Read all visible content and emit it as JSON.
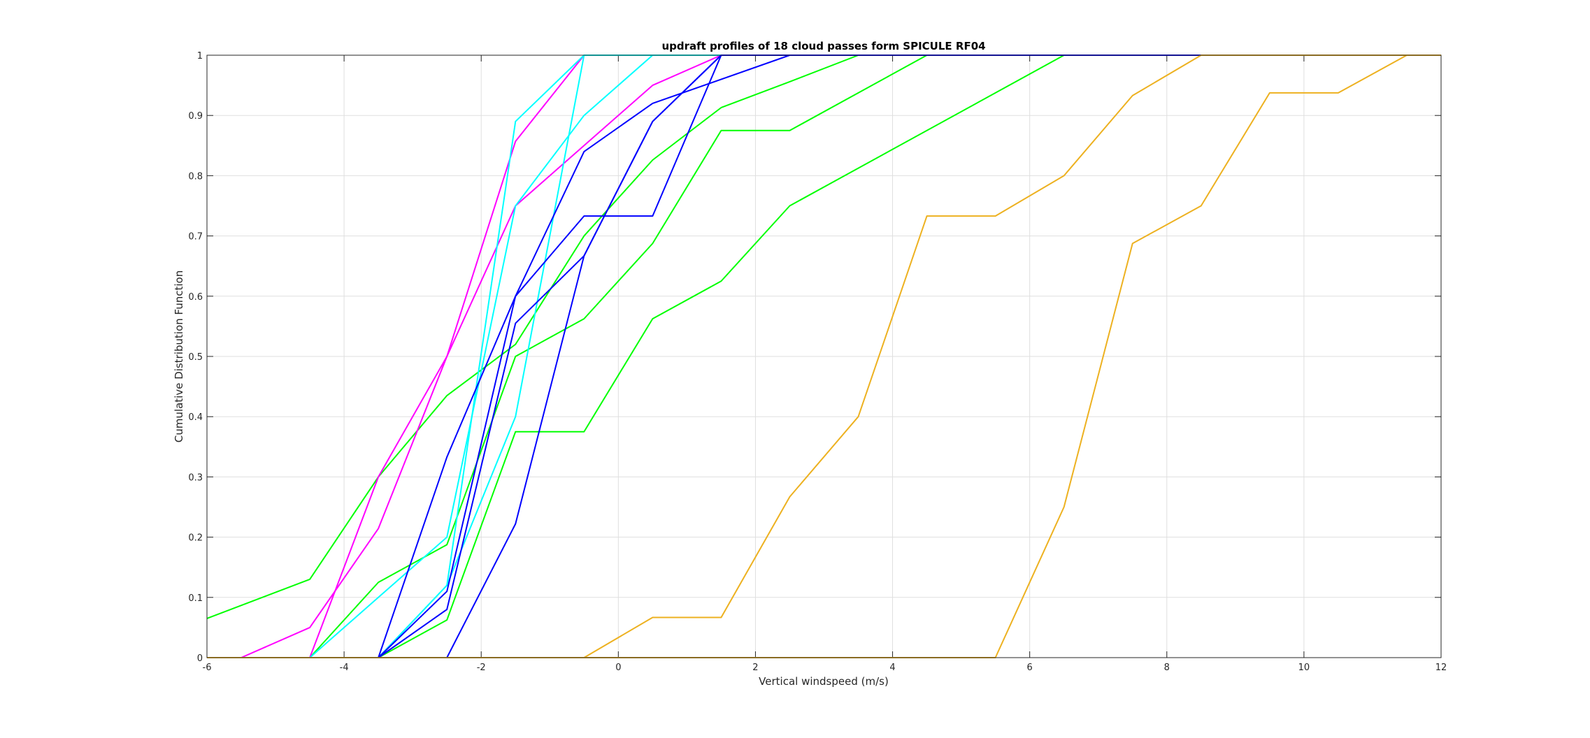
{
  "chart_data": {
    "type": "line",
    "title": "updraft profiles of 18 cloud passes form SPICULE RF04",
    "xlabel": "Vertical windspeed (m/s)",
    "ylabel": "Cumulative Distribution Function",
    "xlim": [
      -6,
      12
    ],
    "ylim": [
      0,
      1
    ],
    "xticks": [
      -6,
      -4,
      -2,
      0,
      2,
      4,
      6,
      8,
      10,
      12
    ],
    "xtick_labels": [
      "-6",
      "-4",
      "-2",
      "0",
      "2",
      "4",
      "6",
      "8",
      "10",
      "12"
    ],
    "yticks": [
      0,
      0.1,
      0.2,
      0.3,
      0.4,
      0.5,
      0.6,
      0.7,
      0.8,
      0.9,
      1
    ],
    "ytick_labels": [
      "0",
      "0.1",
      "0.2",
      "0.3",
      "0.4",
      "0.5",
      "0.6",
      "0.7",
      "0.8",
      "0.9",
      "1"
    ],
    "grid": true,
    "legend": "none",
    "series": [
      {
        "color": "#00ff00",
        "x": [
          -6,
          -4.5,
          -3.5,
          -2.5,
          -1.5,
          -0.5,
          0.5,
          1.5,
          2.5,
          3.5,
          12
        ],
        "y": [
          0.065,
          0.13,
          0.3,
          0.435,
          0.52,
          0.7,
          0.826,
          0.913,
          0.956,
          1,
          1
        ]
      },
      {
        "color": "#00ff00",
        "x": [
          -6,
          -4.5,
          -3.5,
          -2.5,
          -1.5,
          -0.5,
          0.5,
          1.5,
          2.5,
          4.5,
          12
        ],
        "y": [
          0,
          0,
          0.125,
          0.1875,
          0.5,
          0.5625,
          0.6875,
          0.875,
          0.875,
          1,
          1
        ]
      },
      {
        "color": "#00ff00",
        "x": [
          -6,
          -3.5,
          -2.5,
          -1.5,
          -0.5,
          0.5,
          1.5,
          2.5,
          6.5,
          12
        ],
        "y": [
          0,
          0,
          0.0625,
          0.375,
          0.375,
          0.5625,
          0.625,
          0.75,
          1,
          1
        ]
      },
      {
        "color": "#ff00ff",
        "x": [
          -6,
          -5.5,
          -4.5,
          -3.5,
          -2.5,
          -1.5,
          -0.5,
          12
        ],
        "y": [
          0,
          0,
          0.05,
          0.2143,
          0.5,
          0.857,
          1,
          1
        ]
      },
      {
        "color": "#ff00ff",
        "x": [
          -6,
          -4.5,
          -3.5,
          -2.5,
          -1.5,
          -0.5,
          0.5,
          1.5,
          12
        ],
        "y": [
          0,
          0,
          0.3,
          0.5,
          0.75,
          0.85,
          0.95,
          1,
          1
        ]
      },
      {
        "color": "#00ffff",
        "x": [
          -6,
          -4.5,
          -3.5,
          -2.5,
          -1.5,
          -0.5,
          12
        ],
        "y": [
          0,
          0,
          0,
          0.12,
          0.89,
          1,
          1
        ]
      },
      {
        "color": "#00ffff",
        "x": [
          -6,
          -4.5,
          -3.5,
          -2.5,
          -1.5,
          -0.5,
          0.5,
          12
        ],
        "y": [
          0,
          0,
          0.1,
          0.2,
          0.75,
          0.9,
          1,
          1
        ]
      },
      {
        "color": "#00ffff",
        "x": [
          -6,
          -3.5,
          -2.5,
          -1.5,
          -0.5,
          12
        ],
        "y": [
          0,
          0,
          0.12,
          0.4,
          1,
          1
        ]
      },
      {
        "color": "#0000ff",
        "x": [
          -6,
          -3.5,
          -2.5,
          -1.5,
          -0.5,
          0.5,
          1.5,
          12
        ],
        "y": [
          0,
          0,
          0.11,
          0.6,
          0.733,
          0.733,
          1,
          1
        ]
      },
      {
        "color": "#0000ff",
        "x": [
          -6,
          -3.5,
          -2.5,
          -1.5,
          -0.5,
          0.5,
          1.5,
          12
        ],
        "y": [
          0,
          0,
          0.08,
          0.555,
          0.667,
          0.89,
          1,
          1
        ]
      },
      {
        "color": "#0000ff",
        "x": [
          -6,
          -3.5,
          -2.5,
          -1.5,
          -0.5,
          0.5,
          1.5,
          12
        ],
        "y": [
          0,
          0,
          0,
          0.222,
          0.667,
          0.89,
          1,
          1
        ]
      },
      {
        "color": "#0000ff",
        "x": [
          -6,
          -3.5,
          -2.5,
          -1.5,
          -0.5,
          0.5,
          2.5,
          12
        ],
        "y": [
          0,
          0,
          0.333,
          0.6,
          0.84,
          0.92,
          1,
          1
        ]
      },
      {
        "color": "#edb120",
        "x": [
          -6,
          -0.5,
          0.5,
          1.5,
          2.5,
          3.5,
          4.5,
          5.5,
          6.5,
          7.5,
          8.5,
          12
        ],
        "y": [
          0,
          0,
          0.0667,
          0.0667,
          0.267,
          0.4,
          0.733,
          0.733,
          0.8,
          0.933,
          1,
          1
        ]
      },
      {
        "color": "#edb120",
        "x": [
          -6,
          5.5,
          6.5,
          7.5,
          8.5,
          9.5,
          10.5,
          11.5,
          12
        ],
        "y": [
          0,
          0,
          0.25,
          0.6875,
          0.75,
          0.9375,
          0.9375,
          1,
          1
        ]
      }
    ]
  }
}
